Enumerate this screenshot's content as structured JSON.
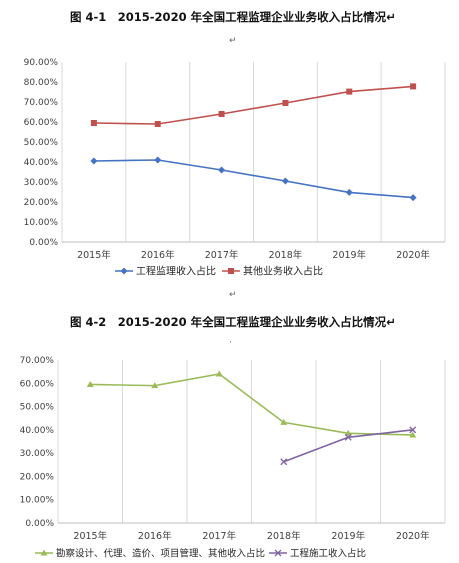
{
  "captions": {
    "chart1": "图 4-1　2015-2020 年全国工程监理企业业务收入占比情况↵",
    "chart2": "图 4-2　2015-2020 年全国工程监理企业业务收入占比情况↵"
  },
  "chart_data": [
    {
      "type": "line",
      "title": "",
      "categories": [
        "2015年",
        "2016年",
        "2017年",
        "2018年",
        "2019年",
        "2020年"
      ],
      "series": [
        {
          "name": "工程监理收入占比",
          "values": [
            40.5,
            41.0,
            36.0,
            30.5,
            24.8,
            22.2
          ],
          "color": "#4472C4",
          "marker": "diamond"
        },
        {
          "name": "其他业务收入占比",
          "values": [
            59.5,
            59.0,
            64.0,
            69.5,
            75.2,
            77.8
          ],
          "color": "#C0504D",
          "marker": "square"
        }
      ],
      "yticks": [
        "0.00%",
        "10.00%",
        "20.00%",
        "30.00%",
        "40.00%",
        "50.00%",
        "60.00%",
        "70.00%",
        "80.00%",
        "90.00%"
      ],
      "ylim": [
        0,
        90
      ],
      "grid": "vertical",
      "legend": "bottom"
    },
    {
      "type": "line",
      "title": "",
      "categories": [
        "2015年",
        "2016年",
        "2017年",
        "2018年",
        "2019年",
        "2020年"
      ],
      "series": [
        {
          "name": "勘察设计、代理、造价、项目管理、其他收入占比",
          "values": [
            59.5,
            59.0,
            64.0,
            43.2,
            38.5,
            37.8
          ],
          "color": "#9BBB59",
          "marker": "triangle"
        },
        {
          "name": "工程施工收入占比",
          "values": [
            null,
            null,
            null,
            26.3,
            36.8,
            40.0
          ],
          "color": "#8064A2",
          "marker": "x"
        }
      ],
      "yticks": [
        "0.00%",
        "10.00%",
        "20.00%",
        "30.00%",
        "40.00%",
        "50.00%",
        "60.00%",
        "70.00%"
      ],
      "ylim": [
        0,
        70
      ],
      "grid": "vertical",
      "legend": "bottom"
    }
  ]
}
